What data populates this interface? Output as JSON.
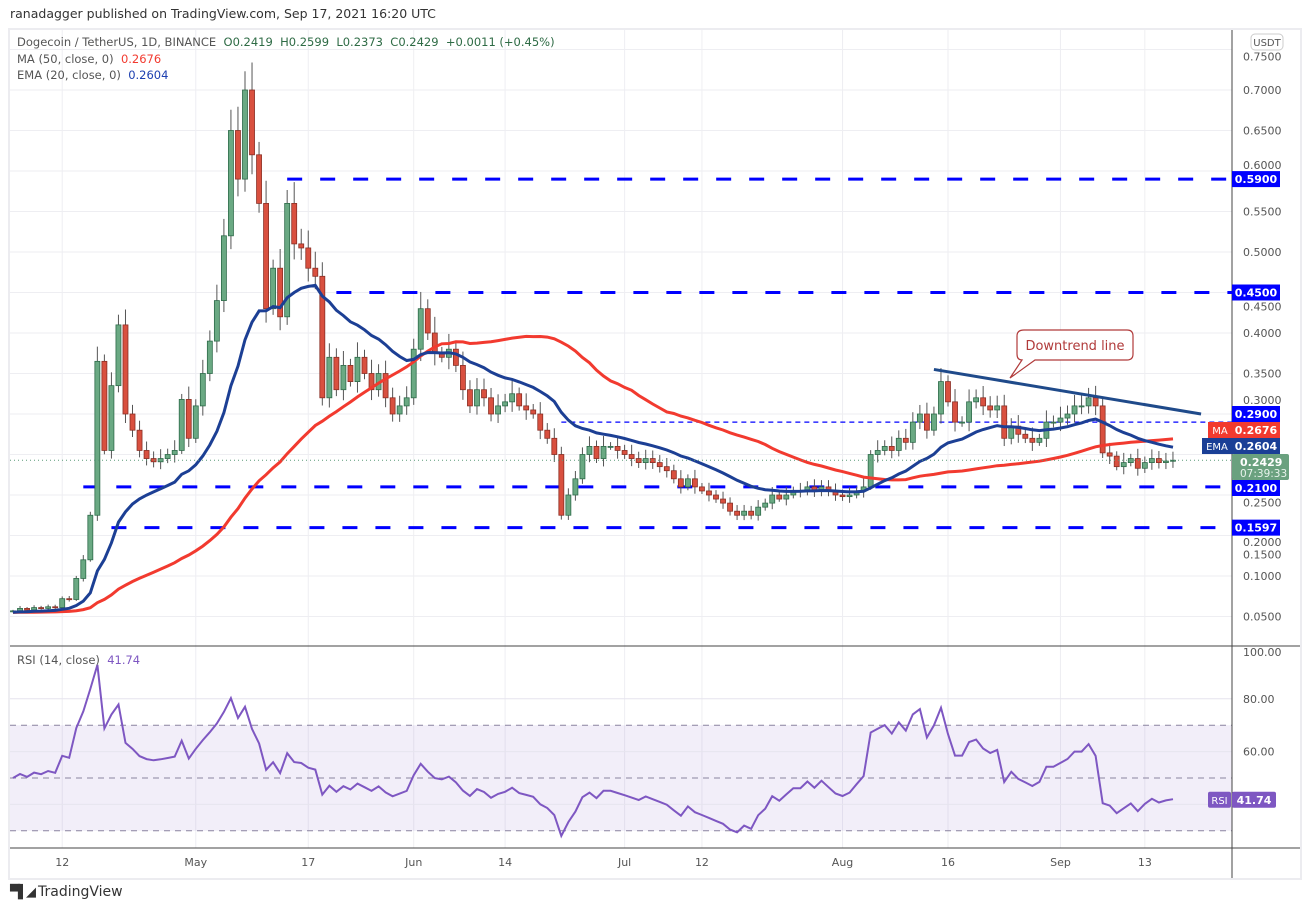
{
  "header": {
    "published": "ranadagger published on TradingView.com, Sep 17, 2021 16:20 UTC"
  },
  "legend": {
    "symbol": "Dogecoin / TetherUS, 1D, BINANCE",
    "open": "O0.2419",
    "high": "H0.2599",
    "low": "L0.2373",
    "close": "C0.2429",
    "change": "+0.0011 (+0.45%)",
    "ma_label": "MA (50, close, 0)",
    "ma_value": "0.2676",
    "ema_label": "EMA (20, close, 0)",
    "ema_value": "0.2604",
    "rsi_label": "RSI (14, close)",
    "rsi_value": "41.74"
  },
  "footer": {
    "brand": "TradingView"
  },
  "colors": {
    "up": "#6aa983",
    "down": "#d9503f",
    "ma": "#f23a2f",
    "ema": "#1c3f94",
    "level": "#0000ff",
    "rsi": "#7e57c2",
    "trend": "#1f4a8a",
    "callout": "#b03a3a"
  },
  "chart_data": {
    "type": "candlestick",
    "title": "Dogecoin / TetherUS, 1D, BINANCE",
    "currency_badge": "USDT",
    "start_date": "2021-04-05",
    "close": [
      0.057,
      0.06,
      0.058,
      0.061,
      0.06,
      0.062,
      0.061,
      0.072,
      0.071,
      0.097,
      0.12,
      0.175,
      0.365,
      0.255,
      0.335,
      0.41,
      0.3,
      0.28,
      0.255,
      0.245,
      0.241,
      0.245,
      0.25,
      0.255,
      0.318,
      0.27,
      0.31,
      0.35,
      0.39,
      0.44,
      0.52,
      0.65,
      0.59,
      0.7,
      0.62,
      0.56,
      0.43,
      0.48,
      0.42,
      0.56,
      0.51,
      0.505,
      0.48,
      0.47,
      0.32,
      0.37,
      0.33,
      0.36,
      0.34,
      0.37,
      0.35,
      0.33,
      0.35,
      0.32,
      0.3,
      0.31,
      0.32,
      0.38,
      0.43,
      0.4,
      0.375,
      0.37,
      0.38,
      0.36,
      0.33,
      0.31,
      0.33,
      0.32,
      0.3,
      0.31,
      0.315,
      0.325,
      0.31,
      0.305,
      0.3,
      0.28,
      0.27,
      0.25,
      0.175,
      0.2,
      0.22,
      0.25,
      0.26,
      0.245,
      0.26,
      0.26,
      0.255,
      0.25,
      0.245,
      0.24,
      0.245,
      0.24,
      0.235,
      0.23,
      0.22,
      0.21,
      0.22,
      0.21,
      0.205,
      0.2,
      0.195,
      0.19,
      0.18,
      0.175,
      0.18,
      0.175,
      0.185,
      0.19,
      0.2,
      0.195,
      0.2,
      0.205,
      0.205,
      0.21,
      0.205,
      0.21,
      0.205,
      0.2,
      0.198,
      0.2,
      0.205,
      0.21,
      0.25,
      0.255,
      0.26,
      0.255,
      0.27,
      0.265,
      0.29,
      0.3,
      0.28,
      0.3,
      0.34,
      0.315,
      0.29,
      0.29,
      0.315,
      0.32,
      0.31,
      0.305,
      0.31,
      0.27,
      0.285,
      0.275,
      0.27,
      0.265,
      0.27,
      0.29,
      0.29,
      0.295,
      0.3,
      0.31,
      0.31,
      0.32,
      0.31,
      0.252,
      0.248,
      0.235,
      0.24,
      0.245,
      0.233,
      0.24,
      0.245,
      0.24,
      0.2419,
      0.2429
    ],
    "indicators": {
      "ma_period": 50,
      "ema_period": 20,
      "rsi_period": 14
    },
    "last": {
      "price": "0.2429",
      "countdown": "07:39:33",
      "ma": "0.2676",
      "ema": "0.2604",
      "rsi": "41.74"
    },
    "y_ticks": [
      "0.0500",
      "0.1000",
      "0.1500",
      "0.2000",
      "0.2500",
      "0.3000",
      "0.3500",
      "0.4000",
      "0.4500",
      "0.5000",
      "0.5500",
      "0.6000",
      "0.6500",
      "0.7000",
      "0.7500"
    ],
    "rsi_ticks": [
      "100.00",
      "80.00",
      "60.00"
    ],
    "rsi_band": [
      30,
      70
    ],
    "x_ticks": [
      {
        "label": "12",
        "date": "2021-04-12"
      },
      {
        "label": "May",
        "date": "2021-05-01"
      },
      {
        "label": "17",
        "date": "2021-05-17"
      },
      {
        "label": "Jun",
        "date": "2021-06-01"
      },
      {
        "label": "14",
        "date": "2021-06-14"
      },
      {
        "label": "Jul",
        "date": "2021-07-01"
      },
      {
        "label": "12",
        "date": "2021-07-12"
      },
      {
        "label": "Aug",
        "date": "2021-08-01"
      },
      {
        "label": "16",
        "date": "2021-08-16"
      },
      {
        "label": "Sep",
        "date": "2021-09-01"
      },
      {
        "label": "13",
        "date": "2021-09-13"
      }
    ],
    "levels": [
      {
        "label": "0.5900",
        "price": 0.59,
        "from": "2021-05-14",
        "style": "dashed"
      },
      {
        "label": "0.4500",
        "price": 0.45,
        "from": "2021-05-21",
        "style": "dashed"
      },
      {
        "label": "0.2900",
        "price": 0.29,
        "from": "2021-06-22",
        "style": "thin-dashed"
      },
      {
        "label": "0.2100",
        "price": 0.21,
        "from": "2021-04-15",
        "style": "dashed"
      },
      {
        "label": "0.1597",
        "price": 0.1597,
        "from": "2021-04-19",
        "style": "dashed"
      }
    ],
    "trendline": {
      "label": "Downtrend line",
      "points": [
        [
          "2021-08-14",
          0.355
        ],
        [
          "2021-09-21",
          0.3
        ]
      ]
    }
  }
}
